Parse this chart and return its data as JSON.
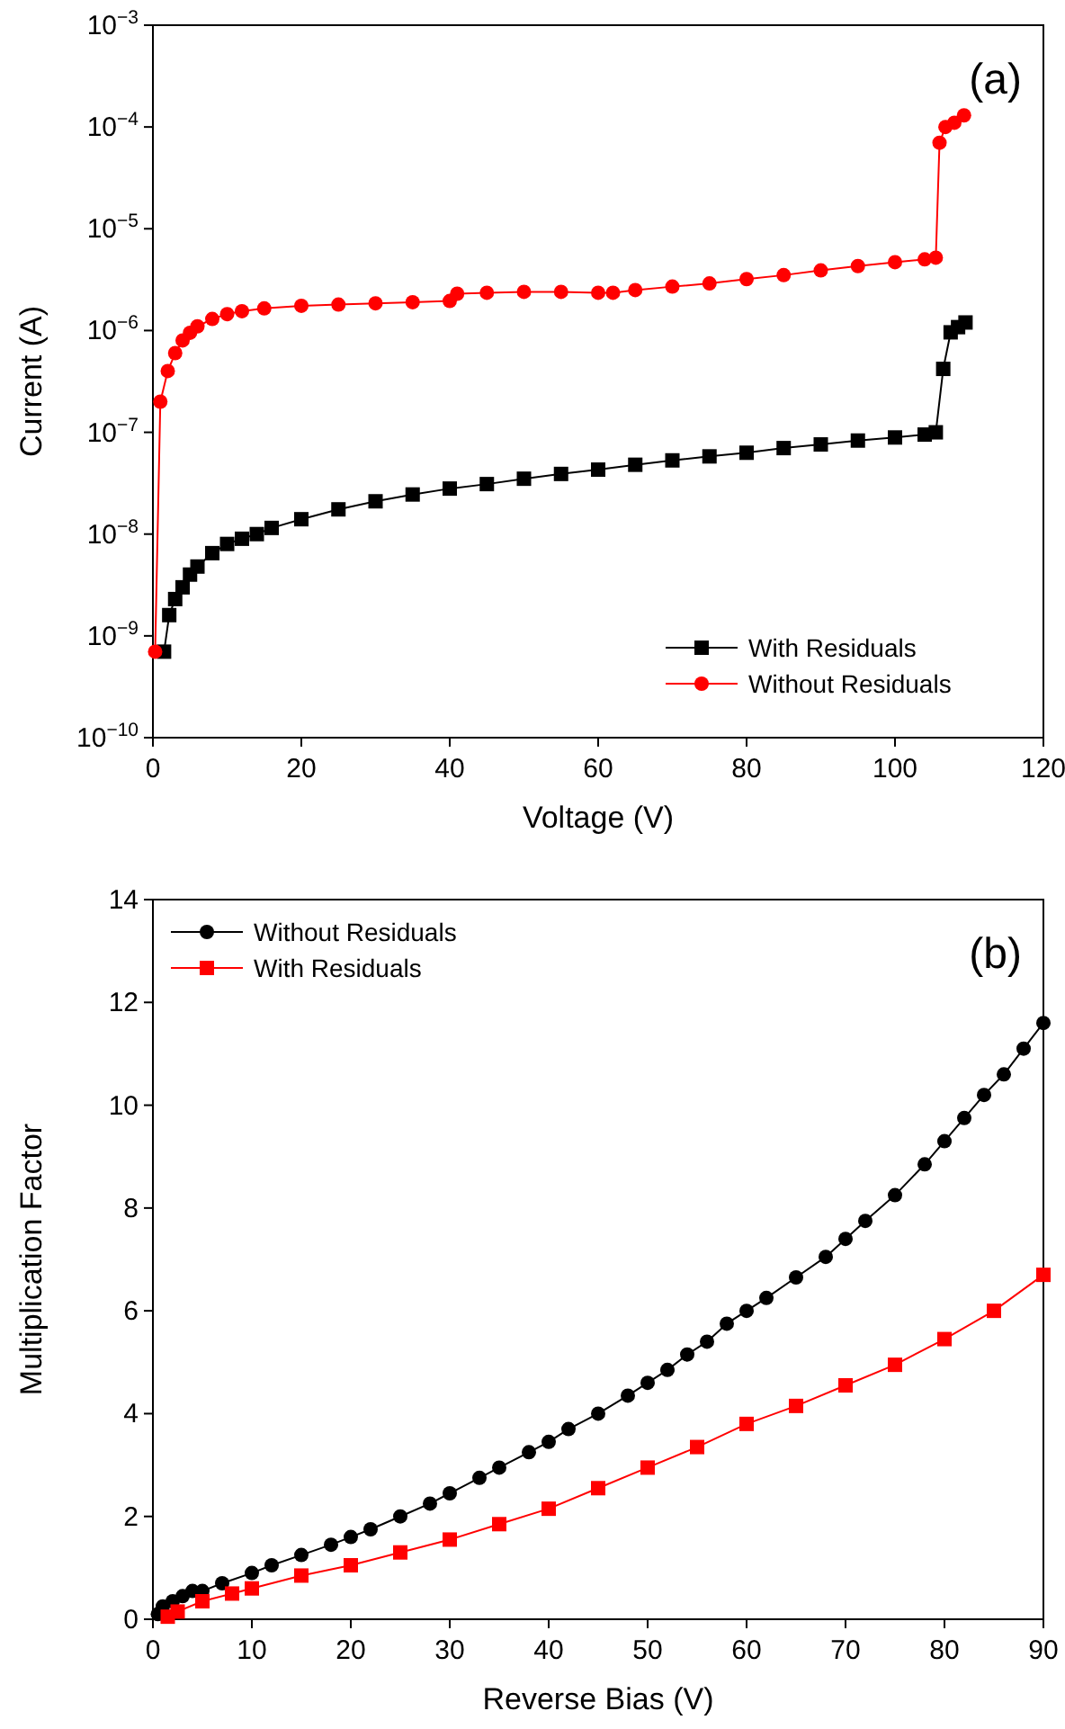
{
  "chart_data": [
    {
      "type": "line",
      "xlabel": "Voltage (V)",
      "ylabel": "Current (A)",
      "annotations": [
        "(a)"
      ],
      "log": "y",
      "xlim": [
        0,
        120
      ],
      "xticks": [
        0,
        20,
        40,
        60,
        80,
        100,
        120
      ],
      "ylim": [
        1e-10,
        0.001
      ],
      "yticks": [
        {
          "value": 1e-10,
          "label": "10$^{−10}$"
        },
        {
          "value": 1e-09,
          "label": "10$^{−9}$"
        },
        {
          "value": 1e-08,
          "label": "10$^{−8}$"
        },
        {
          "value": 1e-07,
          "label": "10$^{−7}$"
        },
        {
          "value": 1e-06,
          "label": "10$^{−6}$"
        },
        {
          "value": 1e-05,
          "label": "10$^{−5}$"
        },
        {
          "value": 0.0001,
          "label": "10$^{−4}$"
        },
        {
          "value": 0.001,
          "label": "10$^{−3}$"
        }
      ],
      "legend": "bottom right",
      "grid": false,
      "series": [
        {
          "name": "With Residuals",
          "color": "#000000",
          "marker": "square",
          "x": [
            1.5,
            2.2,
            3,
            4,
            5,
            6,
            8,
            10,
            12,
            14,
            16,
            20,
            25,
            30,
            35,
            40,
            45,
            50,
            55,
            60,
            65,
            70,
            75,
            80,
            85,
            90,
            95,
            100,
            104,
            105.5,
            106.5,
            107.5,
            108.5,
            109.5
          ],
          "values": [
            7e-10,
            1.6e-09,
            2.3e-09,
            3e-09,
            4e-09,
            4.8e-09,
            6.5e-09,
            8e-09,
            9e-09,
            1e-08,
            1.15e-08,
            1.4e-08,
            1.75e-08,
            2.1e-08,
            2.45e-08,
            2.8e-08,
            3.1e-08,
            3.5e-08,
            3.9e-08,
            4.3e-08,
            4.8e-08,
            5.3e-08,
            5.8e-08,
            6.3e-08,
            7e-08,
            7.6e-08,
            8.3e-08,
            8.9e-08,
            9.5e-08,
            1e-07,
            4.2e-07,
            9.6e-07,
            1.08e-06,
            1.2e-06
          ]
        },
        {
          "name": "Without Residuals",
          "color": "#ff0000",
          "marker": "circle",
          "x": [
            0.3,
            1,
            2,
            3,
            4,
            5,
            6,
            8,
            10,
            12,
            15,
            20,
            25,
            30,
            35,
            40,
            41,
            45,
            50,
            55,
            60,
            62,
            65,
            70,
            75,
            80,
            85,
            90,
            95,
            100,
            104,
            105.5,
            106,
            106.8,
            108,
            109.3
          ],
          "values": [
            7e-10,
            2e-07,
            4e-07,
            6e-07,
            8e-07,
            9.5e-07,
            1.1e-06,
            1.3e-06,
            1.45e-06,
            1.55e-06,
            1.65e-06,
            1.75e-06,
            1.8e-06,
            1.85e-06,
            1.9e-06,
            1.95e-06,
            2.3e-06,
            2.35e-06,
            2.4e-06,
            2.4e-06,
            2.35e-06,
            2.35e-06,
            2.5e-06,
            2.7e-06,
            2.9e-06,
            3.2e-06,
            3.5e-06,
            3.9e-06,
            4.3e-06,
            4.7e-06,
            5e-06,
            5.2e-06,
            7e-05,
            0.0001,
            0.00011,
            0.00013
          ]
        }
      ]
    },
    {
      "type": "line",
      "xlabel": "Reverse Bias (V)",
      "ylabel": "Multiplication Factor",
      "annotations": [
        "(b)"
      ],
      "xlim": [
        0,
        90
      ],
      "xticks": [
        0,
        10,
        20,
        30,
        40,
        50,
        60,
        70,
        80,
        90
      ],
      "ylim": [
        0,
        14
      ],
      "yticks": [
        0,
        2,
        4,
        6,
        8,
        10,
        12,
        14
      ],
      "legend": "top left",
      "grid": false,
      "series": [
        {
          "name": "Without Residuals",
          "color": "#000000",
          "marker": "circle",
          "x": [
            0.5,
            1,
            2,
            3,
            4,
            5,
            7,
            10,
            12,
            15,
            18,
            20,
            22,
            25,
            28,
            30,
            33,
            35,
            38,
            40,
            42,
            45,
            48,
            50,
            52,
            54,
            56,
            58,
            60,
            62,
            65,
            68,
            70,
            72,
            75,
            78,
            80,
            82,
            84,
            86,
            88,
            90
          ],
          "values": [
            0.1,
            0.25,
            0.35,
            0.45,
            0.55,
            0.55,
            0.7,
            0.9,
            1.05,
            1.25,
            1.45,
            1.6,
            1.75,
            2.0,
            2.25,
            2.45,
            2.75,
            2.95,
            3.25,
            3.45,
            3.7,
            4.0,
            4.35,
            4.6,
            4.85,
            5.15,
            5.4,
            5.75,
            6.0,
            6.25,
            6.65,
            7.05,
            7.4,
            7.75,
            8.25,
            8.85,
            9.3,
            9.75,
            10.2,
            10.6,
            11.1,
            11.6
          ]
        },
        {
          "name": "With Residuals",
          "color": "#ff0000",
          "marker": "square",
          "x": [
            1.5,
            2.5,
            5,
            8,
            10,
            15,
            20,
            25,
            30,
            35,
            40,
            45,
            50,
            55,
            60,
            65,
            70,
            75,
            80,
            85,
            90
          ],
          "values": [
            0.05,
            0.15,
            0.35,
            0.5,
            0.6,
            0.85,
            1.05,
            1.3,
            1.55,
            1.85,
            2.15,
            2.55,
            2.95,
            3.35,
            3.8,
            4.15,
            4.55,
            4.95,
            5.45,
            6.0,
            6.7
          ]
        }
      ]
    }
  ]
}
